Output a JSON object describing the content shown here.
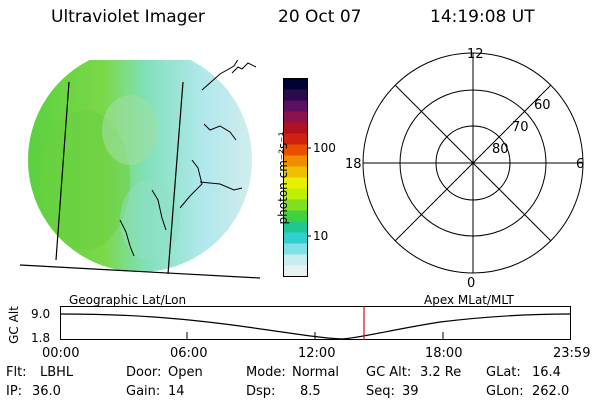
{
  "header": {
    "instrument": "Ultraviolet Imager",
    "date": "20 Oct 07",
    "time": "14:19:08 UT"
  },
  "colorbar": {
    "unit_label": "photon cm⁻²s⁻¹",
    "ticks": [
      "100",
      "10"
    ],
    "colors": [
      "#000030",
      "#2a0a4a",
      "#5a1060",
      "#8a1050",
      "#b01020",
      "#d02010",
      "#e85000",
      "#f08c00",
      "#f0c000",
      "#e8f000",
      "#c0f000",
      "#80e020",
      "#40d040",
      "#20c890",
      "#30d0d0",
      "#80e0e8",
      "#c8ecf0",
      "#e8f2f0"
    ]
  },
  "polar_plot": {
    "latitude_labels": [
      "60",
      "70",
      "80"
    ],
    "mlt_labels": {
      "top": "12",
      "left": "18",
      "right": "6",
      "bottom": "0"
    }
  },
  "altitude_strip": {
    "axis_label": "GC Alt",
    "y_ticks": [
      "9.0",
      "1.8"
    ],
    "left_caption": "Geographic Lat/Lon",
    "right_caption": "Apex MLat/MLT",
    "x_ticks": [
      "00:00",
      "06:00",
      "12:00",
      "18:00",
      "23:59"
    ],
    "current_time_marker": "14:19:08"
  },
  "info": {
    "row1": [
      {
        "label": "Flt:",
        "value": "LBHL"
      },
      {
        "label": "Door:",
        "value": "Open"
      },
      {
        "label": "Mode:",
        "value": "Normal"
      },
      {
        "label": "GC Alt:",
        "value": "3.2 Re"
      },
      {
        "label": "GLat:",
        "value": "16.4"
      }
    ],
    "row2": [
      {
        "label": "IP:",
        "value": "36.0"
      },
      {
        "label": "Gain:",
        "value": "14"
      },
      {
        "label": "Dsp:",
        "value": "8.5"
      },
      {
        "label": "Seq:",
        "value": "39"
      },
      {
        "label": "GLon:",
        "value": "262.0"
      }
    ]
  }
}
